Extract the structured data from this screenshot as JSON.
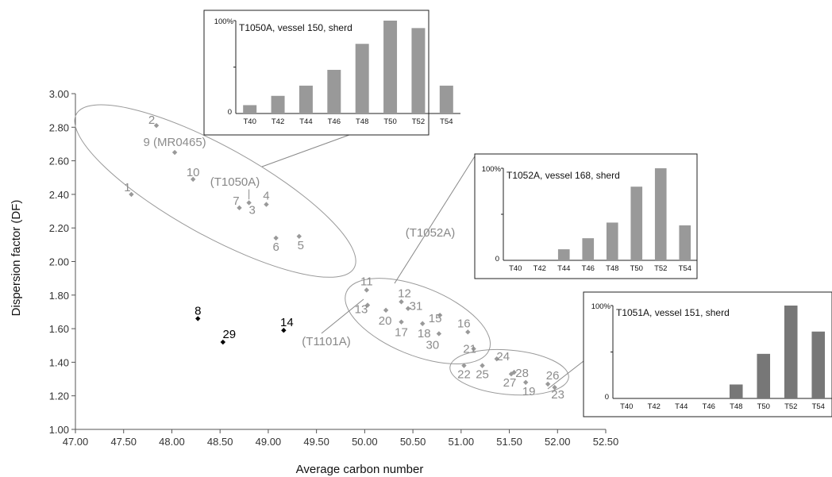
{
  "chart_data": {
    "type": "scatter",
    "xlabel": "Average carbon number",
    "ylabel": "Dispersion factor (DF)",
    "xlim": [
      47.0,
      52.5
    ],
    "ylim": [
      1.0,
      3.0
    ],
    "xticks": [
      "47.00",
      "47.50",
      "48.00",
      "48.50",
      "49.00",
      "49.50",
      "50.00",
      "50.50",
      "51.00",
      "51.50",
      "52.00",
      "52.50"
    ],
    "yticks": [
      "1.00",
      "1.20",
      "1.40",
      "1.60",
      "1.80",
      "2.00",
      "2.20",
      "2.40",
      "2.60",
      "2.80",
      "3.00"
    ],
    "colors": {
      "grey_points": "#999999",
      "grey_labels": "#8c8c8c",
      "black_points": "#000000",
      "bars_light": "#999999",
      "bars_dark": "#777777"
    },
    "points": [
      {
        "label": "1",
        "x": 47.58,
        "y": 2.4,
        "color": "grey"
      },
      {
        "label": "2",
        "x": 47.84,
        "y": 2.81,
        "color": "grey"
      },
      {
        "label": "9 (MR0465)",
        "x": 48.03,
        "y": 2.65,
        "color": "grey"
      },
      {
        "label": "10",
        "x": 48.22,
        "y": 2.49,
        "color": "grey"
      },
      {
        "label": "7",
        "x": 48.7,
        "y": 2.32,
        "color": "grey"
      },
      {
        "label": "3",
        "x": 48.8,
        "y": 2.35,
        "color": "grey"
      },
      {
        "label": "4",
        "x": 48.98,
        "y": 2.34,
        "color": "grey"
      },
      {
        "label": "6",
        "x": 49.08,
        "y": 2.14,
        "color": "grey"
      },
      {
        "label": "5",
        "x": 49.32,
        "y": 2.15,
        "color": "grey"
      },
      {
        "label": "11",
        "x": 50.02,
        "y": 1.83,
        "color": "grey"
      },
      {
        "label": "13",
        "x": 50.03,
        "y": 1.74,
        "color": "grey"
      },
      {
        "label": "20",
        "x": 50.22,
        "y": 1.71,
        "color": "grey"
      },
      {
        "label": "12",
        "x": 50.38,
        "y": 1.76,
        "color": "grey"
      },
      {
        "label": "31",
        "x": 50.45,
        "y": 1.72,
        "color": "grey"
      },
      {
        "label": "17",
        "x": 50.38,
        "y": 1.64,
        "color": "grey"
      },
      {
        "label": "18",
        "x": 50.6,
        "y": 1.63,
        "color": "grey"
      },
      {
        "label": "15",
        "x": 50.78,
        "y": 1.68,
        "color": "grey"
      },
      {
        "label": "30",
        "x": 50.77,
        "y": 1.57,
        "color": "grey"
      },
      {
        "label": "16",
        "x": 51.07,
        "y": 1.58,
        "color": "grey"
      },
      {
        "label": "21",
        "x": 51.13,
        "y": 1.48,
        "color": "grey"
      },
      {
        "label": "22",
        "x": 51.03,
        "y": 1.38,
        "color": "grey"
      },
      {
        "label": "25",
        "x": 51.22,
        "y": 1.38,
        "color": "grey"
      },
      {
        "label": "24",
        "x": 51.37,
        "y": 1.42,
        "color": "grey"
      },
      {
        "label": "28",
        "x": 51.55,
        "y": 1.34,
        "color": "grey"
      },
      {
        "label": "27",
        "x": 51.52,
        "y": 1.33,
        "color": "grey"
      },
      {
        "label": "19",
        "x": 51.67,
        "y": 1.28,
        "color": "grey"
      },
      {
        "label": "26",
        "x": 51.9,
        "y": 1.27,
        "color": "grey"
      },
      {
        "label": "23",
        "x": 51.97,
        "y": 1.25,
        "color": "grey"
      },
      {
        "label": "8",
        "x": 48.27,
        "y": 1.66,
        "color": "black"
      },
      {
        "label": "29",
        "x": 48.53,
        "y": 1.52,
        "color": "black"
      },
      {
        "label": "14",
        "x": 49.16,
        "y": 1.59,
        "color": "black"
      }
    ],
    "annotations": [
      "(T1050A)",
      "(T1052A)",
      "(T1101A)"
    ],
    "insets": [
      {
        "title": "T1050A, vessel 150, sherd",
        "categories": [
          "T40",
          "T42",
          "T44",
          "T46",
          "T48",
          "T50",
          "T52",
          "T54"
        ],
        "values": [
          9,
          19,
          30,
          47,
          75,
          100,
          92,
          30
        ],
        "ymax_label": "100%",
        "ymin_label": "0"
      },
      {
        "title": "T1052A, vessel 168, sherd",
        "categories": [
          "T40",
          "T42",
          "T44",
          "T46",
          "T48",
          "T50",
          "T52",
          "T54"
        ],
        "values": [
          0,
          0,
          12,
          24,
          41,
          80,
          100,
          38
        ],
        "ymax_label": "100%",
        "ymin_label": "0"
      },
      {
        "title": "T1051A, vessel 151, sherd",
        "categories": [
          "T40",
          "T42",
          "T44",
          "T46",
          "T48",
          "T50",
          "T52",
          "T54"
        ],
        "values": [
          0,
          0,
          0,
          0,
          15,
          48,
          100,
          72
        ],
        "ymax_label": "100%",
        "ymin_label": "0"
      }
    ]
  }
}
